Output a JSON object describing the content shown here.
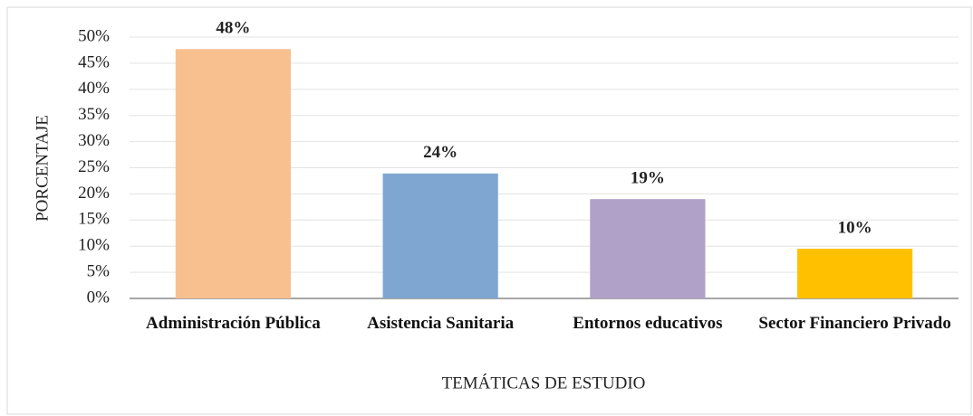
{
  "chart_data": {
    "type": "bar",
    "x_label": "TEMÁTICAS DE ESTUDIO",
    "y_label": "PORCENTAJE",
    "categories": [
      "Administración Pública",
      "Asistencia Sanitaria",
      "Entornos educativos",
      "Sector Financiero Privado"
    ],
    "values": [
      47.7,
      23.9,
      19.0,
      9.5
    ],
    "value_labels": [
      "48%",
      "24%",
      "19%",
      "10%"
    ],
    "colors": [
      "#f8bf8f",
      "#7fa6d0",
      "#b0a1c8",
      "#ffc000"
    ],
    "ylim": [
      0,
      50
    ],
    "yticks": [
      {
        "value": 0,
        "label": "0%"
      },
      {
        "value": 5,
        "label": "5%"
      },
      {
        "value": 10,
        "label": "10%"
      },
      {
        "value": 15,
        "label": "15%"
      },
      {
        "value": 20,
        "label": "20%"
      },
      {
        "value": 25,
        "label": "25%"
      },
      {
        "value": 30,
        "label": "30%"
      },
      {
        "value": 35,
        "label": "35%"
      },
      {
        "value": 40,
        "label": "40%"
      },
      {
        "value": 45,
        "label": "45%"
      },
      {
        "value": 50,
        "label": "50%"
      }
    ],
    "grid": true
  }
}
